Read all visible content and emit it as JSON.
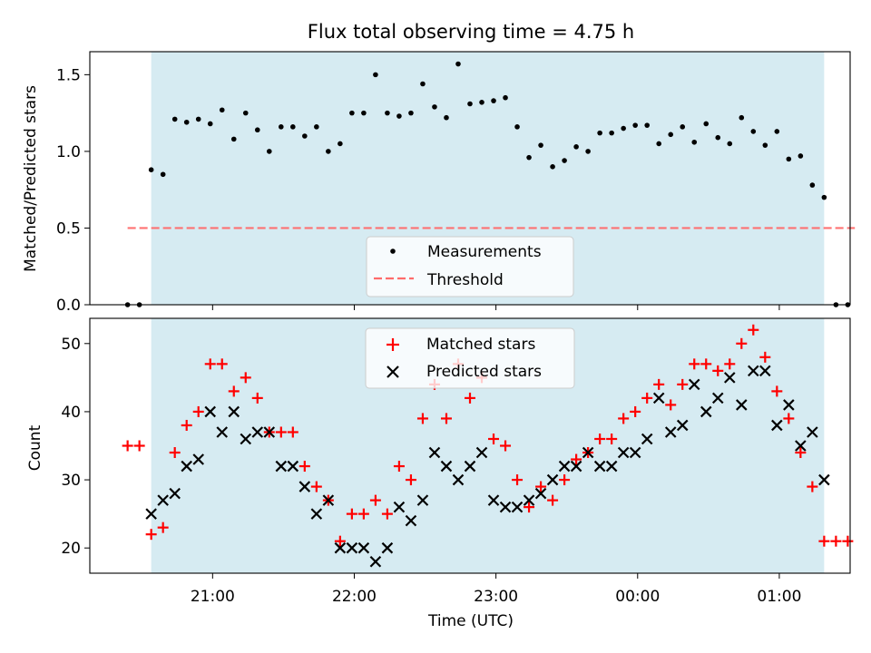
{
  "chart_data": [
    {
      "type": "scatter",
      "title": "Flux total observing time = 4.75 h",
      "xlabel": "",
      "ylabel": "Matched/Predicted stars",
      "ylim": [
        0,
        1.65
      ],
      "yticks": [
        "0.0",
        "0.5",
        "1.0",
        "1.5"
      ],
      "xlim": [
        "20:08",
        "01:30"
      ],
      "xticks": [
        "21:00",
        "22:00",
        "23:00",
        "00:00",
        "01:00"
      ],
      "x_tick_labels_visible": false,
      "shaded_region": {
        "start": "20:34",
        "end": "01:19",
        "color": "#add8e6"
      },
      "threshold": {
        "name": "Threshold",
        "value": 0.5,
        "from": "20:24",
        "to": "01:32",
        "color": "#ff6b6b",
        "style": "dashed"
      },
      "legend": {
        "placement": "bottom-center",
        "entries": [
          "Measurements",
          "Threshold"
        ]
      },
      "series": [
        {
          "name": "Measurements",
          "marker": "dot",
          "color": "#000000",
          "x": [
            "20:24",
            "20:29",
            "20:34",
            "20:39",
            "20:44",
            "20:49",
            "20:54",
            "20:59",
            "21:04",
            "21:09",
            "21:14",
            "21:19",
            "21:24",
            "21:29",
            "21:34",
            "21:39",
            "21:44",
            "21:49",
            "21:54",
            "21:59",
            "22:04",
            "22:09",
            "22:14",
            "22:19",
            "22:24",
            "22:29",
            "22:34",
            "22:39",
            "22:44",
            "22:49",
            "22:54",
            "22:59",
            "23:04",
            "23:09",
            "23:14",
            "23:19",
            "23:24",
            "23:29",
            "23:34",
            "23:39",
            "23:44",
            "23:49",
            "23:54",
            "23:59",
            "00:04",
            "00:09",
            "00:14",
            "00:19",
            "00:24",
            "00:29",
            "00:34",
            "00:39",
            "00:44",
            "00:49",
            "00:54",
            "00:59",
            "01:04",
            "01:09",
            "01:14",
            "01:19",
            "01:24",
            "01:29"
          ],
          "y": [
            0,
            0,
            0.88,
            0.85,
            1.21,
            1.19,
            1.21,
            1.18,
            1.27,
            1.08,
            1.25,
            1.14,
            1.0,
            1.16,
            1.16,
            1.1,
            1.16,
            1.0,
            1.05,
            1.25,
            1.25,
            1.5,
            1.25,
            1.23,
            1.25,
            1.44,
            1.29,
            1.22,
            1.57,
            1.31,
            1.32,
            1.33,
            1.35,
            1.16,
            0.96,
            1.04,
            0.9,
            0.94,
            1.03,
            1.0,
            1.12,
            1.12,
            1.15,
            1.17,
            1.17,
            1.05,
            1.11,
            1.16,
            1.06,
            1.18,
            1.09,
            1.05,
            1.22,
            1.13,
            1.04,
            1.13,
            0.95,
            0.97,
            0.78,
            0.7,
            0,
            0
          ]
        }
      ]
    },
    {
      "type": "scatter",
      "title": "",
      "xlabel": "Time (UTC)",
      "ylabel": "Count",
      "ylim": [
        16.3,
        53.7
      ],
      "yticks": [
        "20",
        "30",
        "40",
        "50"
      ],
      "xlim": [
        "20:08",
        "01:30"
      ],
      "xticks": [
        "21:00",
        "22:00",
        "23:00",
        "00:00",
        "01:00"
      ],
      "shaded_region": {
        "start": "20:34",
        "end": "01:19",
        "color": "#add8e6"
      },
      "legend": {
        "placement": "top-center",
        "entries": [
          "Matched stars",
          "Predicted stars"
        ]
      },
      "series": [
        {
          "name": "Matched stars",
          "marker": "plus",
          "color": "#ff0000",
          "x": [
            "20:24",
            "20:29",
            "20:34",
            "20:39",
            "20:44",
            "20:49",
            "20:54",
            "20:59",
            "21:04",
            "21:09",
            "21:14",
            "21:19",
            "21:24",
            "21:29",
            "21:34",
            "21:39",
            "21:44",
            "21:49",
            "21:54",
            "21:59",
            "22:04",
            "22:09",
            "22:14",
            "22:19",
            "22:24",
            "22:29",
            "22:34",
            "22:39",
            "22:44",
            "22:49",
            "22:54",
            "22:59",
            "23:04",
            "23:09",
            "23:14",
            "23:19",
            "23:24",
            "23:29",
            "23:34",
            "23:39",
            "23:44",
            "23:49",
            "23:54",
            "23:59",
            "00:04",
            "00:09",
            "00:14",
            "00:19",
            "00:24",
            "00:29",
            "00:34",
            "00:39",
            "00:44",
            "00:49",
            "00:54",
            "00:59",
            "01:04",
            "01:09",
            "01:14",
            "01:19",
            "01:24",
            "01:29"
          ],
          "y": [
            35,
            35,
            22,
            23,
            34,
            38,
            40,
            47,
            47,
            43,
            45,
            42,
            37,
            37,
            37,
            32,
            29,
            27,
            21,
            25,
            25,
            27,
            25,
            32,
            30,
            39,
            44,
            39,
            47,
            42,
            45,
            36,
            35,
            30,
            26,
            29,
            27,
            30,
            33,
            34,
            36,
            36,
            39,
            40,
            42,
            44,
            41,
            44,
            47,
            47,
            46,
            47,
            50,
            52,
            48,
            43,
            39,
            34,
            29,
            21,
            21,
            21
          ]
        },
        {
          "name": "Predicted stars",
          "marker": "x",
          "color": "#000000",
          "x": [
            "20:34",
            "20:39",
            "20:44",
            "20:49",
            "20:54",
            "20:59",
            "21:04",
            "21:09",
            "21:14",
            "21:19",
            "21:24",
            "21:29",
            "21:34",
            "21:39",
            "21:44",
            "21:49",
            "21:54",
            "21:59",
            "22:04",
            "22:09",
            "22:14",
            "22:19",
            "22:24",
            "22:29",
            "22:34",
            "22:39",
            "22:44",
            "22:49",
            "22:54",
            "22:59",
            "23:04",
            "23:09",
            "23:14",
            "23:19",
            "23:24",
            "23:29",
            "23:34",
            "23:39",
            "23:44",
            "23:49",
            "23:54",
            "23:59",
            "00:04",
            "00:09",
            "00:14",
            "00:19",
            "00:24",
            "00:29",
            "00:34",
            "00:39",
            "00:44",
            "00:49",
            "00:54",
            "00:59",
            "01:04",
            "01:09",
            "01:14",
            "01:19"
          ],
          "y": [
            25,
            27,
            28,
            32,
            33,
            40,
            37,
            40,
            36,
            37,
            37,
            32,
            32,
            29,
            25,
            27,
            20,
            20,
            20,
            18,
            20,
            26,
            24,
            27,
            34,
            32,
            30,
            32,
            34,
            27,
            26,
            26,
            27,
            28,
            30,
            32,
            32,
            34,
            32,
            32,
            34,
            34,
            36,
            42,
            37,
            38,
            44,
            40,
            42,
            45,
            41,
            46,
            46,
            38,
            41,
            35,
            37,
            30
          ]
        }
      ]
    }
  ]
}
